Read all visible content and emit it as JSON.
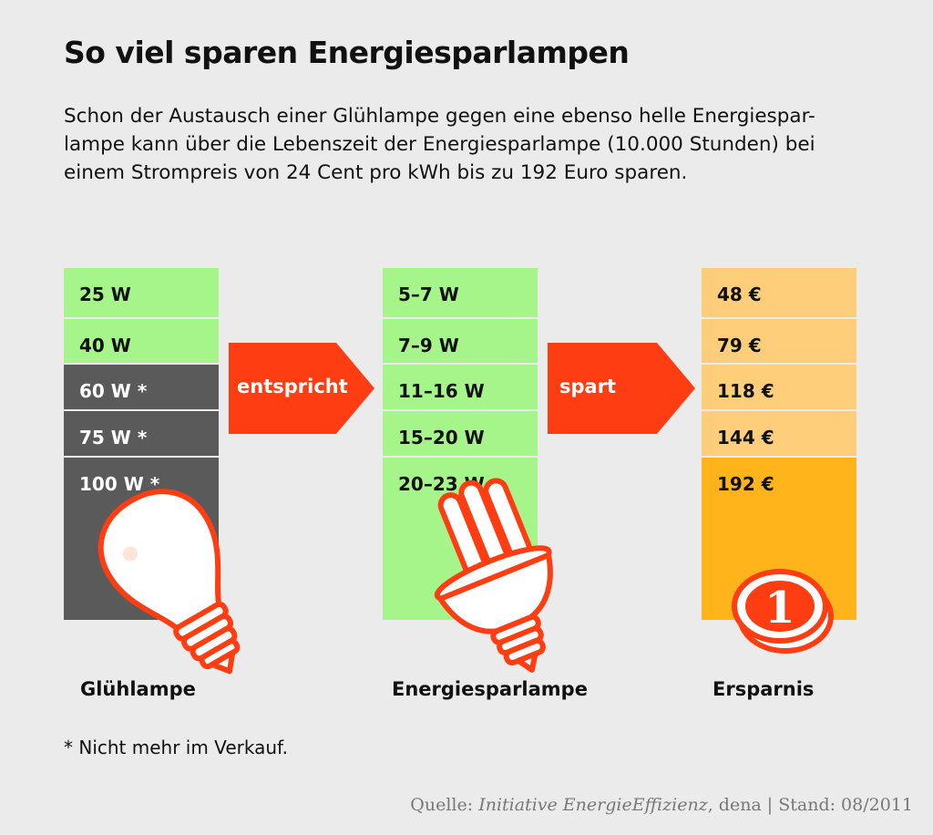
{
  "title": "So viel sparen Energiesparlampen",
  "intro": [
    "Schon der Austausch einer Glühlampe gegen eine ebenso helle Energiespar-",
    "lampe kann über die Lebenszeit der Energiesparlampe (10.000 Stunden) bei",
    "einem Strompreis von 24 Cent pro kWh bis zu 192 Euro sparen."
  ],
  "colors": {
    "green": "#a6f58a",
    "gray": "#5a5a5a",
    "gold_light": "#ffce7a",
    "gold": "#ffb41c",
    "arrow": "#ff3d12"
  },
  "chart_data": {
    "type": "table",
    "columns": [
      "Glühlampe",
      "Energiesparlampe",
      "Ersparnis"
    ],
    "connectors": [
      "entspricht",
      "spart"
    ],
    "rows": [
      {
        "gluehlampe": "25 W",
        "energiesparlampe": "5–7 W",
        "ersparnis": "48 €",
        "not_for_sale": false
      },
      {
        "gluehlampe": "40 W",
        "energiesparlampe": "7–9 W",
        "ersparnis": "79 €",
        "not_for_sale": false
      },
      {
        "gluehlampe": "60 W *",
        "energiesparlampe": "11–16 W",
        "ersparnis": "118 €",
        "not_for_sale": true
      },
      {
        "gluehlampe": "75 W *",
        "energiesparlampe": "15–20 W",
        "ersparnis": "144 €",
        "not_for_sale": true
      },
      {
        "gluehlampe": "100 W *",
        "energiesparlampe": "20–23 W",
        "ersparnis": "192 €",
        "not_for_sale": true
      }
    ]
  },
  "icons": [
    "light-bulb-icon",
    "energy-saving-lamp-icon",
    "euro-coin-icon"
  ],
  "coin_label": "1",
  "footnote": "* Nicht mehr im Verkauf.",
  "source": {
    "prefix": "Quelle: ",
    "org": "Initiative EnergieEffizienz",
    "suffix": ", dena | Stand: 08/2011"
  }
}
